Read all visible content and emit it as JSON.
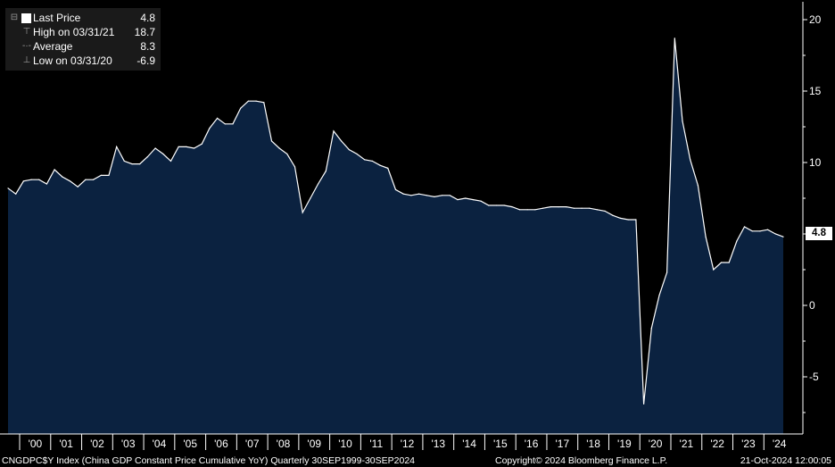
{
  "legend": {
    "last_price_label": "Last Price",
    "last_price_value": "4.8",
    "high_label": "High on 03/31/21",
    "high_value": "18.7",
    "average_label": "Average",
    "average_value": "8.3",
    "low_label": "Low on 03/31/20",
    "low_value": "-6.9"
  },
  "last_tag": "4.8",
  "footer": {
    "left": "CNGDPC$Y Index (China GDP Constant Price Cumulative YoY)  Quarterly 30SEP1999-30SEP2024",
    "center": "Copyright© 2024 Bloomberg Finance L.P.",
    "right": "21-Oct-2024 12:00:05"
  },
  "colors": {
    "background": "#000000",
    "area_fill": "#0b2240",
    "line": "#ffffff",
    "axis": "#ffffff"
  },
  "chart_data": {
    "type": "area",
    "ylim": [
      -9,
      21
    ],
    "yticks": [
      -5,
      0,
      5,
      10,
      15,
      20
    ],
    "ytick_labels": [
      "-5",
      "0",
      "5",
      "10",
      "15",
      "20"
    ],
    "xlabels": [
      "'00",
      "'01",
      "'02",
      "'03",
      "'04",
      "'05",
      "'06",
      "'07",
      "'08",
      "'09",
      "'10",
      "'11",
      "'12",
      "'13",
      "'14",
      "'15",
      "'16",
      "'17",
      "'18",
      "'19",
      "'20",
      "'21",
      "'22",
      "'23",
      "'24"
    ],
    "x": [
      "1999-Q3",
      "1999-Q4",
      "2000-Q1",
      "2000-Q2",
      "2000-Q3",
      "2000-Q4",
      "2001-Q1",
      "2001-Q2",
      "2001-Q3",
      "2001-Q4",
      "2002-Q1",
      "2002-Q2",
      "2002-Q3",
      "2002-Q4",
      "2003-Q1",
      "2003-Q2",
      "2003-Q3",
      "2003-Q4",
      "2004-Q1",
      "2004-Q2",
      "2004-Q3",
      "2004-Q4",
      "2005-Q1",
      "2005-Q2",
      "2005-Q3",
      "2005-Q4",
      "2006-Q1",
      "2006-Q2",
      "2006-Q3",
      "2006-Q4",
      "2007-Q1",
      "2007-Q2",
      "2007-Q3",
      "2007-Q4",
      "2008-Q1",
      "2008-Q2",
      "2008-Q3",
      "2008-Q4",
      "2009-Q1",
      "2009-Q2",
      "2009-Q3",
      "2009-Q4",
      "2010-Q1",
      "2010-Q2",
      "2010-Q3",
      "2010-Q4",
      "2011-Q1",
      "2011-Q2",
      "2011-Q3",
      "2011-Q4",
      "2012-Q1",
      "2012-Q2",
      "2012-Q3",
      "2012-Q4",
      "2013-Q1",
      "2013-Q2",
      "2013-Q3",
      "2013-Q4",
      "2014-Q1",
      "2014-Q2",
      "2014-Q3",
      "2014-Q4",
      "2015-Q1",
      "2015-Q2",
      "2015-Q3",
      "2015-Q4",
      "2016-Q1",
      "2016-Q2",
      "2016-Q3",
      "2016-Q4",
      "2017-Q1",
      "2017-Q2",
      "2017-Q3",
      "2017-Q4",
      "2018-Q1",
      "2018-Q2",
      "2018-Q3",
      "2018-Q4",
      "2019-Q1",
      "2019-Q2",
      "2019-Q3",
      "2019-Q4",
      "2020-Q1",
      "2020-Q2",
      "2020-Q3",
      "2020-Q4",
      "2021-Q1",
      "2021-Q2",
      "2021-Q3",
      "2021-Q4",
      "2022-Q1",
      "2022-Q2",
      "2022-Q3",
      "2022-Q4",
      "2023-Q1",
      "2023-Q2",
      "2023-Q3",
      "2023-Q4",
      "2024-Q1",
      "2024-Q2",
      "2024-Q3"
    ],
    "values": [
      8.2,
      7.8,
      8.7,
      8.8,
      8.8,
      8.5,
      9.5,
      9.0,
      8.7,
      8.3,
      8.8,
      8.8,
      9.1,
      9.1,
      11.1,
      10.1,
      9.9,
      9.9,
      10.4,
      11.0,
      10.6,
      10.1,
      11.1,
      11.1,
      11.0,
      11.3,
      12.4,
      13.1,
      12.7,
      12.7,
      13.8,
      14.3,
      14.3,
      14.2,
      11.5,
      11.0,
      10.6,
      9.7,
      6.5,
      7.5,
      8.5,
      9.4,
      12.2,
      11.5,
      10.9,
      10.6,
      10.2,
      10.1,
      9.8,
      9.6,
      8.1,
      7.8,
      7.7,
      7.8,
      7.7,
      7.6,
      7.7,
      7.7,
      7.4,
      7.5,
      7.4,
      7.3,
      7.0,
      7.0,
      7.0,
      6.9,
      6.7,
      6.7,
      6.7,
      6.8,
      6.9,
      6.9,
      6.9,
      6.8,
      6.8,
      6.8,
      6.7,
      6.6,
      6.3,
      6.1,
      6.0,
      6.0,
      -6.9,
      -1.6,
      0.7,
      2.3,
      18.7,
      12.9,
      10.2,
      8.4,
      4.8,
      2.5,
      3.0,
      3.0,
      4.5,
      5.5,
      5.2,
      5.2,
      5.3,
      5.0,
      4.8
    ]
  }
}
